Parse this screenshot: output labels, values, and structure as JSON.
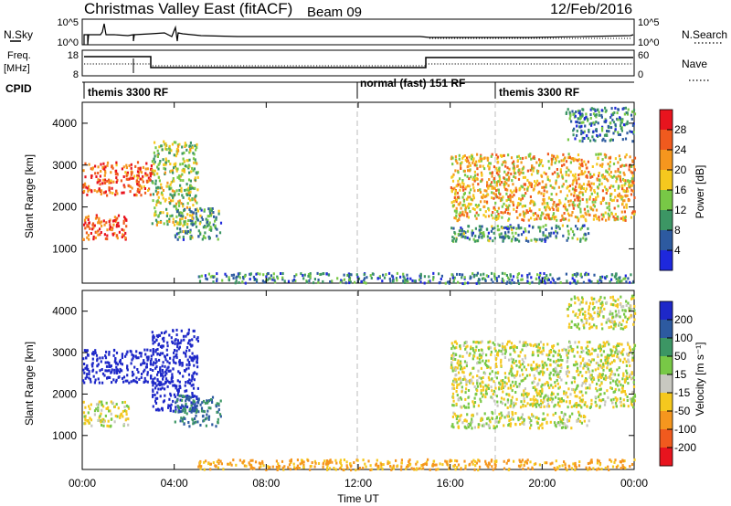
{
  "header": {
    "title": "Christmas Valley East (fitACF)",
    "beam": "Beam 09",
    "date": "12/Feb/2016"
  },
  "strip_labels": {
    "nsky": "N.Sky",
    "nsky_ticks": [
      "10^5",
      "10^0"
    ],
    "nsearch": "N.Search",
    "nsearch_ticks": [
      "10^5",
      "10^0"
    ],
    "freq": "Freq.",
    "freq_unit": "[MHz]",
    "freq_ticks": [
      "18",
      "8"
    ],
    "nave": "Nave",
    "nave_ticks": [
      "60",
      "0"
    ],
    "cpid": "CPID"
  },
  "cpid_segments": [
    {
      "label": "themis 3300 RF",
      "start": 0
    },
    {
      "label": "normal (fast) 151 RF",
      "start": 12
    },
    {
      "label": "themis 3300 RF",
      "start": 18
    }
  ],
  "x_axis": {
    "label": "Time UT",
    "ticks": [
      "00:00",
      "04:00",
      "08:00",
      "12:00",
      "16:00",
      "20:00",
      "00:00"
    ]
  },
  "chart_data": [
    {
      "type": "heatmap",
      "title": "",
      "xlabel": "Time UT",
      "ylabel": "Slant Range [km]",
      "xlim": [
        0,
        24
      ],
      "ylim": [
        180,
        4500
      ],
      "yticks": [
        1000,
        2000,
        3000,
        4000
      ],
      "colorbar": {
        "label": "Power [dB]",
        "ticks": [
          "28",
          "24",
          "20",
          "16",
          "12",
          "8",
          "4"
        ],
        "colors": [
          "#e8141e",
          "#f05a1e",
          "#f5961e",
          "#f5c81e",
          "#78c846",
          "#3c9664",
          "#2d5aa0",
          "#1e28dc"
        ]
      },
      "regions": [
        {
          "name": "Upper echo 00-03 UT",
          "t": [
            0,
            3.0
          ],
          "range": [
            2300,
            3100
          ],
          "value_db": 26
        },
        {
          "name": "Lower echo 00-02 UT",
          "t": [
            0,
            2.0
          ],
          "range": [
            1250,
            1850
          ],
          "value_db": 27
        },
        {
          "name": "Echo 03-05 UT",
          "t": [
            3.0,
            5.0
          ],
          "range": [
            1600,
            3600
          ],
          "value_db": 15
        },
        {
          "name": "Descending echo 04-06 UT",
          "t": [
            4.0,
            6.0
          ],
          "range": [
            1250,
            2000
          ],
          "value_db": 10
        },
        {
          "name": "Near-range scatter",
          "t": [
            5.0,
            24
          ],
          "range": [
            200,
            450
          ],
          "value_db": 8
        },
        {
          "name": "Main arc 16-24 UT",
          "t": [
            16.0,
            24
          ],
          "range": [
            1700,
            3300
          ],
          "value_db": 20
        },
        {
          "name": "Lower arc 16-22 UT",
          "t": [
            16.0,
            22
          ],
          "range": [
            1200,
            1600
          ],
          "value_db": 10
        },
        {
          "name": "High-range echoes 21-24 UT",
          "t": [
            21.0,
            24
          ],
          "range": [
            3600,
            4400
          ],
          "value_db": 8
        }
      ]
    },
    {
      "type": "heatmap",
      "title": "",
      "xlabel": "Time UT",
      "ylabel": "Slant Range [km]",
      "xlim": [
        0,
        24
      ],
      "ylim": [
        180,
        4500
      ],
      "yticks": [
        1000,
        2000,
        3000,
        4000
      ],
      "colorbar": {
        "label": "Velocity [m s⁻¹]",
        "ticks": [
          "200",
          "100",
          "50",
          "15",
          "-15",
          "-50",
          "-100",
          "-200"
        ],
        "colors": [
          "#1e28c8",
          "#2d5aa0",
          "#3c9664",
          "#78c846",
          "#c8c8c0",
          "#f5c81e",
          "#f5961e",
          "#f05a1e",
          "#e8141e"
        ]
      },
      "regions": [
        {
          "name": "Upper echo 00-03 UT",
          "t": [
            0,
            3.0
          ],
          "range": [
            2300,
            3100
          ],
          "value_ms": 200
        },
        {
          "name": "Lower echo 00-02 UT",
          "t": [
            0,
            2.0
          ],
          "range": [
            1250,
            1850
          ],
          "value_ms": 0
        },
        {
          "name": "Echo 03-05 UT",
          "t": [
            3.0,
            5.0
          ],
          "range": [
            1600,
            3600
          ],
          "value_ms": 180
        },
        {
          "name": "Descending echo 04-06 UT",
          "t": [
            4.0,
            6.0
          ],
          "range": [
            1250,
            2000
          ],
          "value_ms": 80
        },
        {
          "name": "Near-range scatter",
          "t": [
            5.0,
            24
          ],
          "range": [
            200,
            450
          ],
          "value_ms": -40
        },
        {
          "name": "Main arc 16-24 UT",
          "t": [
            16.0,
            24
          ],
          "range": [
            1700,
            3300
          ],
          "value_ms": 0
        },
        {
          "name": "Lower arc 16-22 UT",
          "t": [
            16.0,
            22
          ],
          "range": [
            1200,
            1600
          ],
          "value_ms": 0
        },
        {
          "name": "High-range echoes 21-24 UT",
          "t": [
            21.0,
            24
          ],
          "range": [
            3600,
            4400
          ],
          "value_ms": 0
        }
      ]
    }
  ]
}
